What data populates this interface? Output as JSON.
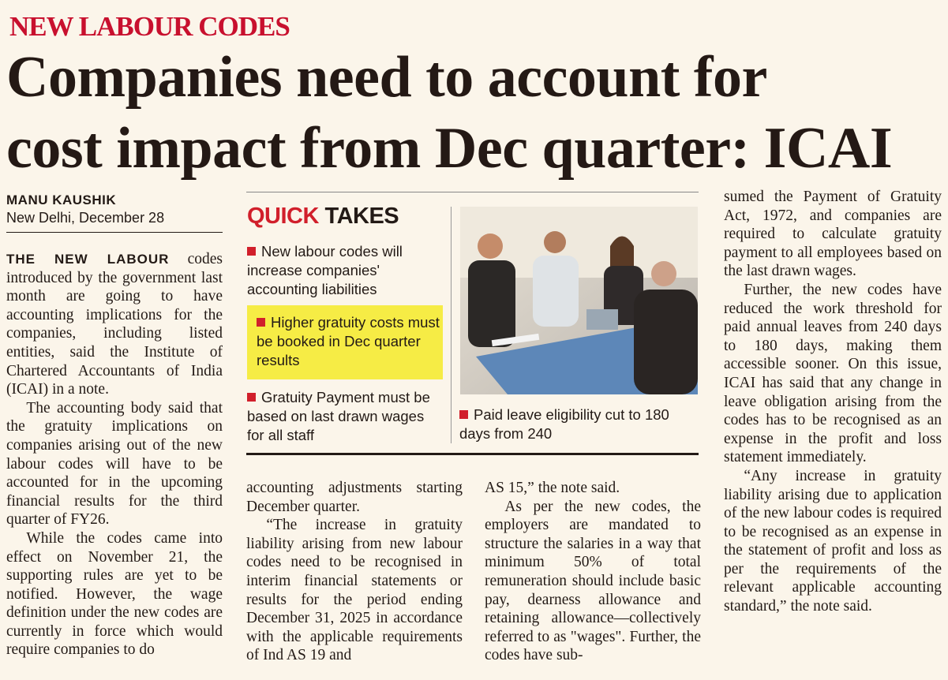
{
  "kicker": "NEW LABOUR CODES",
  "headline": [
    "Companies need to account for",
    "cost impact from Dec quarter: ICAI"
  ],
  "byline": {
    "author": "MANU KAUSHIK",
    "dateline": "New Delhi, December 28"
  },
  "quick_takes": {
    "title_accent": "QUICK",
    "title_rest": "TAKES",
    "items": [
      "New labour codes will increase companies' accounting liabilities",
      "Higher gratuity costs must be booked in Dec quarter results",
      "Gratuity Payment must be based on last drawn wages for all staff"
    ],
    "caption": "Paid leave eligibility cut to 180 days from 240"
  },
  "article": {
    "columns": [
      {
        "paragraphs": [
          {
            "lead": "THE NEW LABOUR",
            "text": " codes introduced by the government last month are going to have accounting implications for the companies, including listed entities, said the Institute of Chartered Accountants of India (ICAI) in a note."
          },
          {
            "text": "The accounting body said that the gratuity implications on companies arising out of the new labour codes will have to be accounted for in the upcoming financial results for the third quarter of FY26."
          },
          {
            "text": "While the codes came into effect on November 21, the supporting rules are yet to be notified. However, the wage definition under the new codes are currently in force which would require companies to do"
          }
        ]
      },
      {
        "paragraphs": [
          {
            "text": "accounting adjustments starting December quarter."
          },
          {
            "text": "“The increase in gratuity liability arising from new labour codes need to be recognised in interim financial statements or results for the period ending December 31, 2025 in accordance with the applicable requirements of Ind AS 19 and"
          }
        ]
      },
      {
        "paragraphs": [
          {
            "text": "AS 15,” the note said."
          },
          {
            "text": "As per the new codes, the employers are mandated to structure the salaries in a way that minimum 50% of total remuneration should include basic pay, dearness allowance and retaining allowance—collectively referred to as \"wages\". Further, the codes have sub-"
          }
        ]
      },
      {
        "paragraphs": [
          {
            "text": "sumed the Payment of Gratuity Act, 1972, and companies are required to calculate gratuity payment to all employees based on the last drawn wages."
          },
          {
            "text": "Further, the new codes have reduced the work threshold for paid annual leaves from 240 days to 180 days, making them accessible sooner. On this issue, ICAI has said that any change in leave obligation arising from the codes has to be recognised as an expense in the profit and loss statement immediately."
          },
          {
            "text": "“Any increase in gratuity liability arising due to application of the new labour codes is required to be recognised as an expense in the statement of profit and loss as per the requirements of the relevant applicable accounting standard,” the note said."
          }
        ]
      }
    ]
  }
}
